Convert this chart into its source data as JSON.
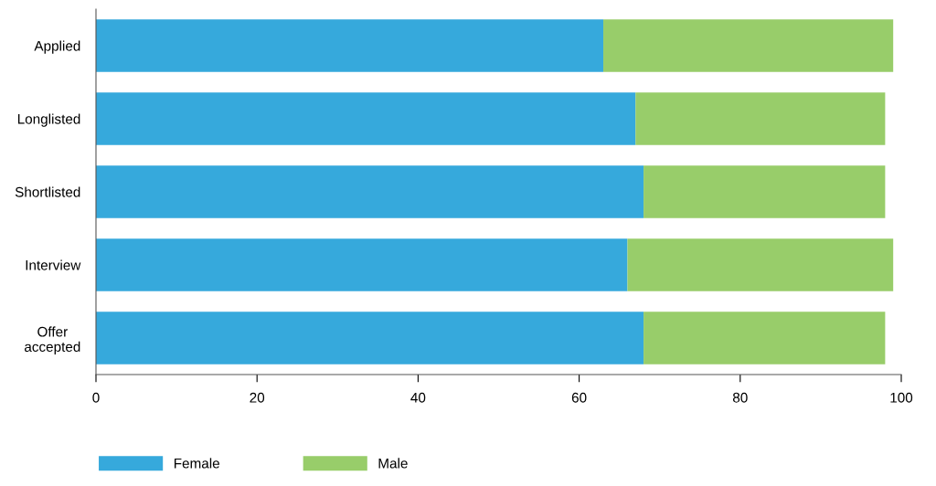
{
  "chart_data": {
    "type": "bar",
    "orientation": "horizontal",
    "stacked": true,
    "categories": [
      "Applied",
      "Longlisted",
      "Shortlisted",
      "Interview",
      "Offer\naccepted"
    ],
    "series": [
      {
        "name": "Female",
        "color": "#36a9dc",
        "values": [
          63,
          67,
          68,
          66,
          68
        ]
      },
      {
        "name": "Male",
        "color": "#98cd6a",
        "values": [
          36,
          31,
          30,
          33,
          30
        ]
      }
    ],
    "xlim": [
      0,
      100
    ],
    "xticks": [
      0,
      20,
      40,
      60,
      80,
      100
    ],
    "grid": false,
    "legend": "bottom left"
  }
}
